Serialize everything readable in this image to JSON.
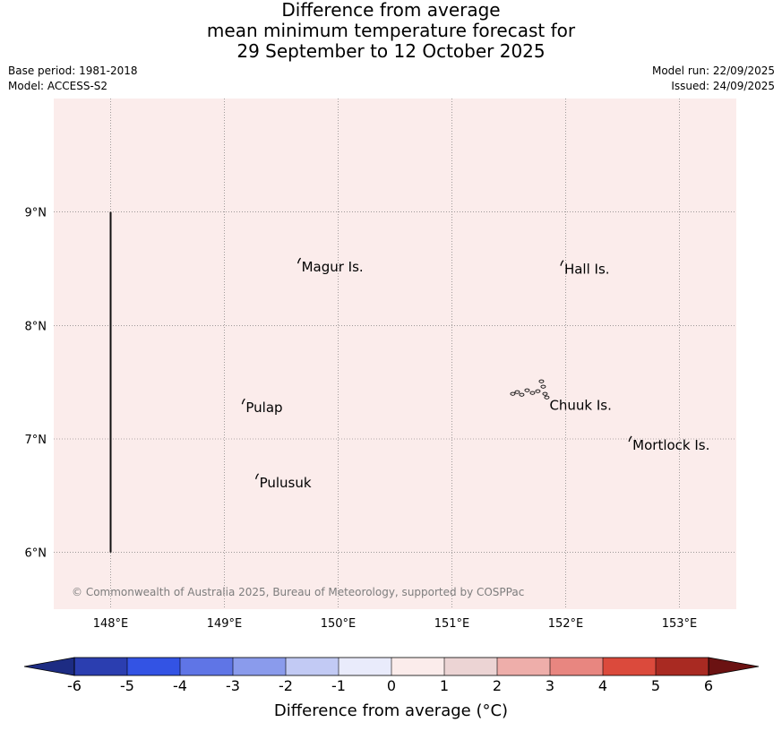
{
  "title": {
    "line1": "Difference from average",
    "line2": "mean minimum temperature forecast for",
    "line3": "29 September to 12 October 2025"
  },
  "meta": {
    "base_period": "Base period: 1981-2018",
    "model": "Model: ACCESS-S2",
    "model_run": "Model run: 22/09/2025",
    "issued": "Issued: 24/09/2025"
  },
  "map": {
    "fill_color": "#fbeceb",
    "lon_range": [
      147.5,
      153.5
    ],
    "lat_range": [
      5.5,
      10.0
    ],
    "lon_ticks": [
      {
        "value": 148,
        "label": "148°E"
      },
      {
        "value": 149,
        "label": "149°E"
      },
      {
        "value": 150,
        "label": "150°E"
      },
      {
        "value": 151,
        "label": "151°E"
      },
      {
        "value": 152,
        "label": "152°E"
      },
      {
        "value": 153,
        "label": "153°E"
      }
    ],
    "lat_ticks": [
      {
        "value": 9,
        "label": "9°N"
      },
      {
        "value": 8,
        "label": "8°N"
      },
      {
        "value": 7,
        "label": "7°N"
      },
      {
        "value": 6,
        "label": "6°N"
      }
    ],
    "boundary_line": {
      "lon": 148.0,
      "lat_from": 6.0,
      "lat_to": 9.0
    },
    "places": [
      {
        "name": "Magur Is.",
        "lon": 149.67,
        "lat": 8.57
      },
      {
        "name": "Hall Is.",
        "lon": 151.98,
        "lat": 8.55
      },
      {
        "name": "Pulap",
        "lon": 149.18,
        "lat": 7.33
      },
      {
        "name": "Chuuk Is.",
        "lon": 151.85,
        "lat": 7.35
      },
      {
        "name": "Mortlock Is.",
        "lon": 152.58,
        "lat": 7.0
      },
      {
        "name": "Pulusuk",
        "lon": 149.3,
        "lat": 6.67
      }
    ],
    "copyright": "© Commonwealth of Australia 2025, Bureau of Meteorology, supported by COSPPac"
  },
  "colorbar": {
    "label": "Difference from average (°C)",
    "ticks": [
      "-6",
      "-5",
      "-4",
      "-3",
      "-2",
      "-1",
      "0",
      "1",
      "2",
      "3",
      "4",
      "5",
      "6"
    ],
    "low_extend_color": "#1d2c83",
    "high_extend_color": "#6b1212",
    "bins": [
      {
        "from": -6,
        "to": -5,
        "color": "#2b3eb0"
      },
      {
        "from": -5,
        "to": -4,
        "color": "#3353e4"
      },
      {
        "from": -4,
        "to": -3,
        "color": "#5f75e6"
      },
      {
        "from": -3,
        "to": -2,
        "color": "#8a9bec"
      },
      {
        "from": -2,
        "to": -1,
        "color": "#c2caf4"
      },
      {
        "from": -1,
        "to": 0,
        "color": "#e9ebfb"
      },
      {
        "from": 0,
        "to": 1,
        "color": "#fbeceb"
      },
      {
        "from": 1,
        "to": 2,
        "color": "#ecd4d4"
      },
      {
        "from": 2,
        "to": 3,
        "color": "#eeaeaa"
      },
      {
        "from": 3,
        "to": 4,
        "color": "#e88680"
      },
      {
        "from": 4,
        "to": 5,
        "color": "#db4a3c"
      },
      {
        "from": 5,
        "to": 6,
        "color": "#a92a22"
      }
    ]
  }
}
